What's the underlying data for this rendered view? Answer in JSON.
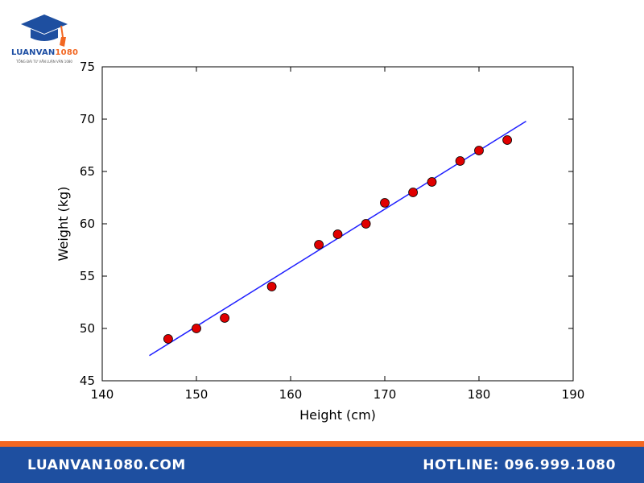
{
  "brand": {
    "name_main": "LUANVAN",
    "name_accent": "1080",
    "tagline": "TỔNG ĐÀI TƯ VẤN LUẬN VĂN 1080",
    "colors": {
      "primary": "#1e4fa0",
      "accent": "#f26722"
    }
  },
  "footer": {
    "website": "LUANVAN1080.COM",
    "hotline": "HOTLINE: 096.999.1080"
  },
  "chart_data": {
    "type": "scatter",
    "title": "",
    "xlabel": "Height (cm)",
    "ylabel": "Weight (kg)",
    "xlim": [
      140,
      190
    ],
    "ylim": [
      45,
      75
    ],
    "xticks": [
      140,
      150,
      160,
      170,
      180,
      190
    ],
    "yticks": [
      45,
      50,
      55,
      60,
      65,
      70,
      75
    ],
    "grid": false,
    "points": {
      "x": [
        147,
        150,
        153,
        158,
        163,
        165,
        168,
        170,
        173,
        175,
        178,
        180,
        183
      ],
      "y": [
        49,
        50,
        51,
        54,
        58,
        59,
        60,
        62,
        63,
        64,
        66,
        67,
        68
      ],
      "color": "#e00000"
    },
    "fit_line": {
      "x": [
        145,
        185
      ],
      "y": [
        47.4,
        69.8
      ],
      "color": "#1f1fff"
    }
  }
}
